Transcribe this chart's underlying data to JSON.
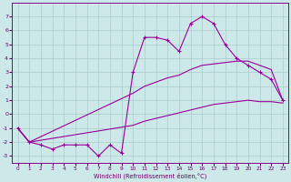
{
  "xlabel": "Windchill (Refroidissement éolien,°C)",
  "x_all": [
    0,
    1,
    2,
    3,
    4,
    5,
    6,
    7,
    8,
    9,
    10,
    11,
    12,
    13,
    14,
    15,
    16,
    17,
    18,
    19,
    20,
    21,
    22,
    23
  ],
  "line_main": [
    -1.0,
    -2.0,
    -2.2,
    -2.5,
    -2.2,
    -2.2,
    -2.2,
    -3.0,
    -2.2,
    -2.8,
    3.0,
    5.5,
    5.5,
    5.3,
    4.5,
    6.5,
    7.0,
    6.5,
    5.0,
    4.0,
    3.5,
    3.0,
    2.5,
    1.0
  ],
  "x_envelopes": [
    0,
    1,
    10,
    11,
    12,
    13,
    14,
    15,
    16,
    17,
    18,
    19,
    20,
    21,
    22,
    23
  ],
  "line_upper": [
    -1.0,
    -2.0,
    1.5,
    2.0,
    2.3,
    2.6,
    2.8,
    3.2,
    3.5,
    3.6,
    3.7,
    3.8,
    3.8,
    3.5,
    3.2,
    1.0
  ],
  "line_lower": [
    -1.0,
    -2.0,
    -0.8,
    -0.5,
    -0.3,
    -0.1,
    0.1,
    0.3,
    0.5,
    0.7,
    0.8,
    0.9,
    1.0,
    0.9,
    0.9,
    0.8
  ],
  "ylim": [
    -3.5,
    8.0
  ],
  "xlim": [
    -0.5,
    23.5
  ],
  "yticks": [
    -3,
    -2,
    -1,
    0,
    1,
    2,
    3,
    4,
    5,
    6,
    7
  ],
  "xticks": [
    0,
    1,
    2,
    3,
    4,
    5,
    6,
    7,
    8,
    9,
    10,
    11,
    12,
    13,
    14,
    15,
    16,
    17,
    18,
    19,
    20,
    21,
    22,
    23
  ],
  "line_color": "#990099",
  "bg_color": "#cce8e8",
  "grid_color": "#aacccc",
  "fig_bg": "#cce8e8"
}
